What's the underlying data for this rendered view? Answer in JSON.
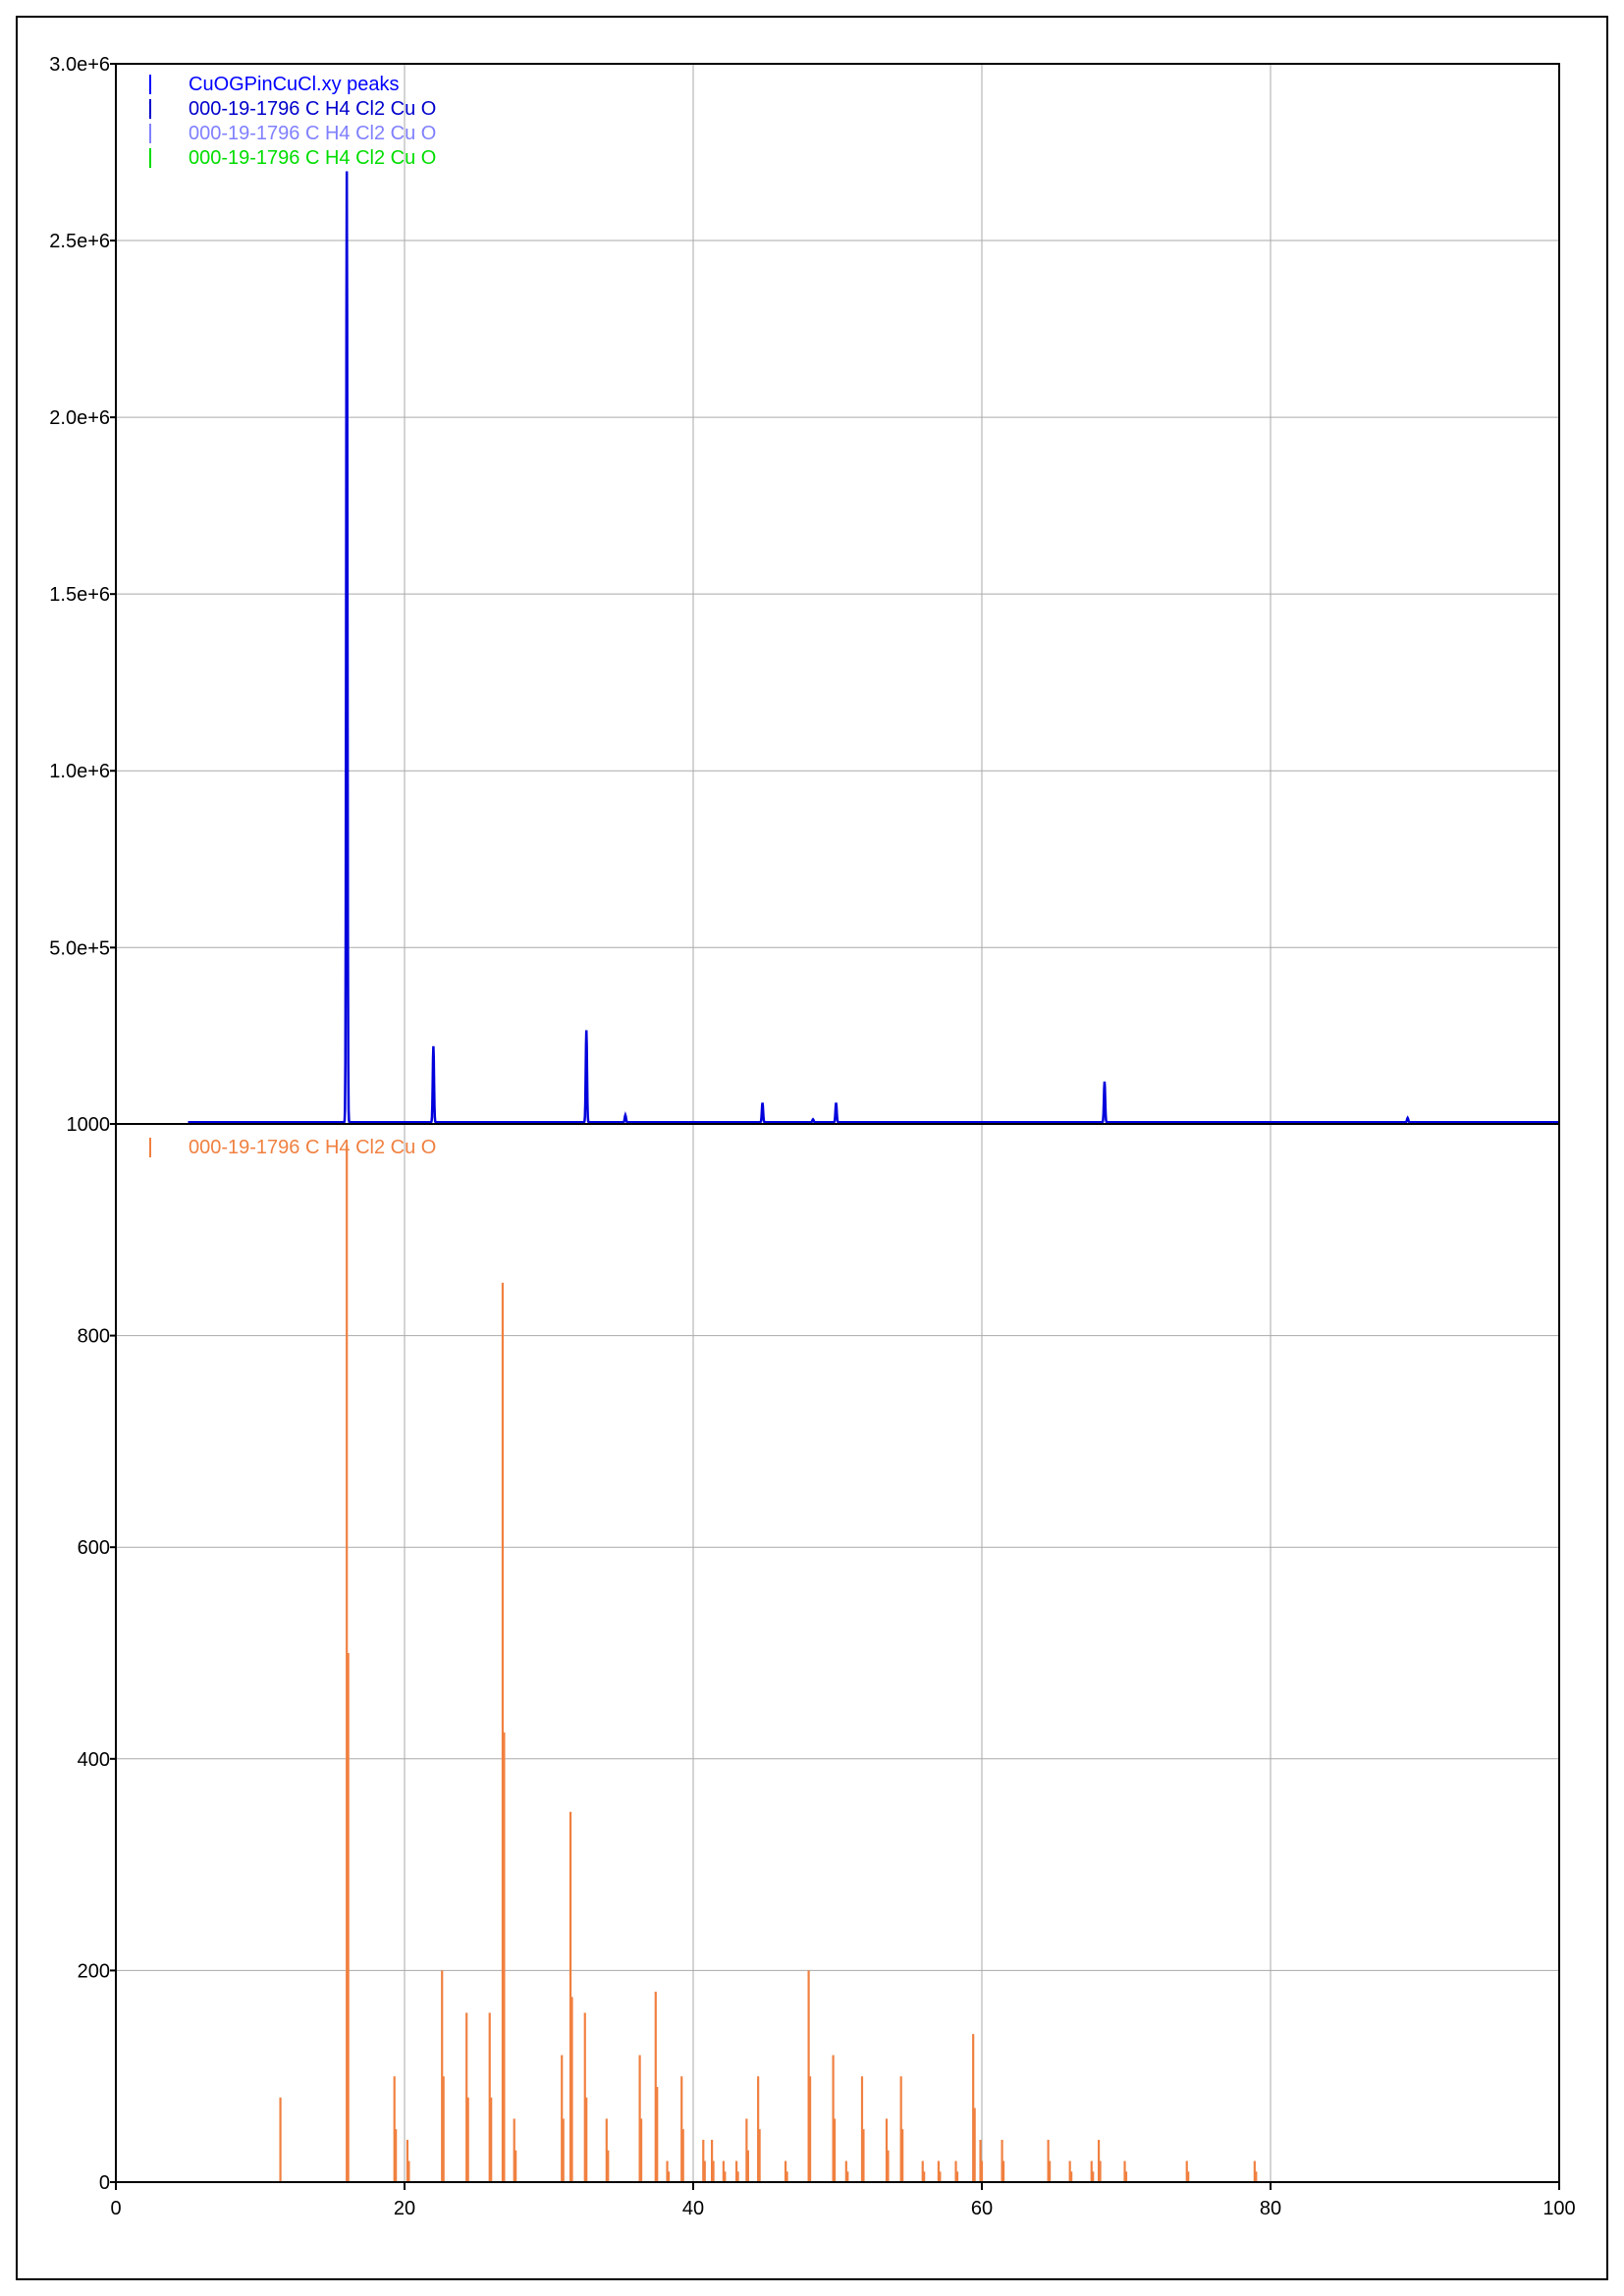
{
  "chart_data": [
    {
      "type": "line",
      "title": "",
      "xlabel": "",
      "ylabel": "",
      "xlim": [
        0,
        100
      ],
      "ylim": [
        1000,
        3000000
      ],
      "ytick_labels": [
        "1000",
        "5.0e+5",
        "1.0e+6",
        "1.5e+6",
        "2.0e+6",
        "2.5e+6",
        "3.0e+6"
      ],
      "ytick_values": [
        1000,
        500000,
        1000000,
        1500000,
        2000000,
        2500000,
        3000000
      ],
      "grid": true,
      "legend_position": "top-left",
      "legend": [
        {
          "label": "CuOGPinCuCl.xy peaks",
          "color": "#0000ff"
        },
        {
          "label": "000-19-1796 C H4 Cl2 Cu O",
          "color": "#0000cc"
        },
        {
          "label": "000-19-1796 C H4 Cl2 Cu O",
          "color": "#8080ff"
        },
        {
          "label": "000-19-1796 C H4 Cl2 Cu O",
          "color": "#00dd00"
        }
      ],
      "series": [
        {
          "name": "CuOGPinCuCl.xy peaks",
          "color": "#0000dd",
          "x_range": [
            5,
            100
          ],
          "baseline": 6000,
          "peaks": [
            {
              "x": 16.0,
              "y": 2690000
            },
            {
              "x": 22.0,
              "y": 215000
            },
            {
              "x": 32.6,
              "y": 260000
            },
            {
              "x": 35.3,
              "y": 20000
            },
            {
              "x": 44.8,
              "y": 55000
            },
            {
              "x": 48.3,
              "y": 8000
            },
            {
              "x": 49.9,
              "y": 55000
            },
            {
              "x": 68.5,
              "y": 115000
            },
            {
              "x": 89.5,
              "y": 12000
            }
          ]
        }
      ]
    },
    {
      "type": "bar",
      "title": "",
      "xlabel": "",
      "ylabel": "",
      "xlim": [
        0,
        100
      ],
      "ylim": [
        0,
        1000
      ],
      "xticks": [
        0,
        20,
        40,
        60,
        80,
        100
      ],
      "yticks": [
        0,
        200,
        400,
        600,
        800,
        1000
      ],
      "grid": true,
      "legend_position": "top-left",
      "legend": [
        {
          "label": "000-19-1796 C H4 Cl2 Cu O",
          "color": "#f08040"
        }
      ],
      "series": [
        {
          "name": "000-19-1796 C H4 Cl2 Cu O",
          "color": "#f08040",
          "x": [
            11.4,
            16.0,
            16.1,
            19.3,
            19.4,
            20.2,
            20.3,
            22.6,
            22.7,
            24.3,
            24.4,
            25.9,
            26.0,
            26.8,
            26.9,
            27.6,
            27.7,
            30.9,
            31.0,
            31.5,
            31.6,
            32.5,
            32.6,
            34.0,
            34.1,
            36.3,
            36.4,
            37.4,
            37.5,
            38.2,
            38.3,
            39.2,
            39.3,
            40.7,
            40.8,
            41.3,
            41.4,
            42.1,
            42.2,
            43.0,
            43.1,
            43.7,
            43.8,
            44.5,
            44.6,
            46.4,
            46.5,
            48.0,
            48.1,
            49.7,
            49.8,
            50.6,
            50.7,
            51.7,
            51.8,
            53.4,
            53.5,
            54.4,
            54.5,
            55.9,
            56.0,
            57.0,
            57.1,
            58.2,
            58.3,
            59.4,
            59.5,
            59.9,
            60.0,
            61.4,
            61.5,
            64.6,
            64.7,
            66.1,
            66.2,
            67.6,
            67.7,
            68.1,
            68.2,
            69.9,
            70.0,
            74.2,
            74.3,
            78.9,
            79.0
          ],
          "y": [
            80,
            980,
            500,
            100,
            50,
            40,
            20,
            200,
            100,
            160,
            80,
            160,
            80,
            850,
            425,
            60,
            30,
            120,
            60,
            350,
            175,
            160,
            80,
            60,
            30,
            120,
            60,
            180,
            90,
            20,
            10,
            100,
            50,
            40,
            20,
            40,
            20,
            20,
            10,
            20,
            10,
            60,
            30,
            100,
            50,
            20,
            10,
            200,
            100,
            120,
            60,
            20,
            10,
            100,
            50,
            60,
            30,
            100,
            50,
            20,
            10,
            20,
            10,
            20,
            10,
            140,
            70,
            40,
            20,
            40,
            20,
            40,
            20,
            20,
            10,
            20,
            10,
            40,
            20,
            20,
            10,
            20,
            10,
            20,
            10
          ]
        }
      ]
    }
  ]
}
